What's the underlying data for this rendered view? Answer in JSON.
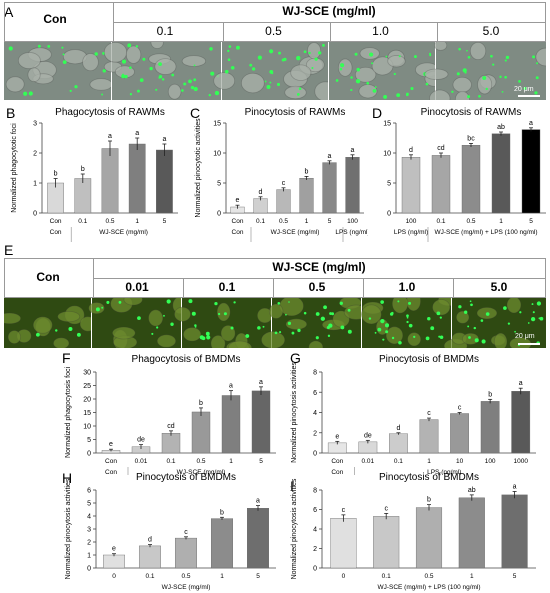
{
  "panel_letters": {
    "a": "A",
    "b": "B",
    "c": "C",
    "d": "D",
    "e": "E",
    "f": "F",
    "g": "G",
    "h": "H",
    "i": "I"
  },
  "panel_a": {
    "con_label": "Con",
    "treatment_header": "WJ-SCE (mg/ml)",
    "doses": [
      "0.1",
      "0.5",
      "1.0",
      "5.0"
    ],
    "scale_bar": "20 μm"
  },
  "panel_e": {
    "con_label": "Con",
    "treatment_header": "WJ-SCE (mg/ml)",
    "doses": [
      "0.01",
      "0.1",
      "0.5",
      "1.0",
      "5.0"
    ],
    "scale_bar": "20 μm"
  },
  "colors": {
    "micro_bg_a": "#7f8b83",
    "micro_bg_e": "#2f4a12",
    "fluor_green": "#33ff55"
  },
  "chart_data": [
    {
      "id": "B",
      "type": "bar",
      "title": "Phagocytosis of RAWMs",
      "ylabel": "Normalized phagocytotic foci",
      "categories": [
        "Con",
        "0.1",
        "0.5",
        "1",
        "5"
      ],
      "values": [
        1.0,
        1.15,
        2.15,
        2.3,
        2.1
      ],
      "errors": [
        0.15,
        0.15,
        0.25,
        0.2,
        0.2
      ],
      "letters": [
        "b",
        "b",
        "a",
        "a",
        "a"
      ],
      "ylim": [
        0,
        3
      ],
      "yticks": [
        0,
        1,
        2,
        3
      ],
      "xlabel_groups": [
        "Con",
        "WJ-SCE (mg/ml)"
      ],
      "colors": [
        "#d9d9d9",
        "#bfbfbf",
        "#a6a6a6",
        "#7f7f7f",
        "#595959"
      ]
    },
    {
      "id": "C",
      "type": "bar",
      "title": "Pinocytosis of RAWMs",
      "ylabel": "Normalized pinocytotic activities",
      "categories": [
        "Con",
        "0.1",
        "0.5",
        "1",
        "5",
        "100"
      ],
      "values": [
        1.0,
        2.4,
        3.9,
        5.8,
        8.4,
        9.3
      ],
      "errors": [
        0.3,
        0.3,
        0.3,
        0.3,
        0.3,
        0.4
      ],
      "letters": [
        "e",
        "d",
        "c",
        "b",
        "a",
        "a"
      ],
      "ylim": [
        0,
        15
      ],
      "yticks": [
        0,
        5,
        10,
        15
      ],
      "xlabel_groups": [
        "Con",
        "WJ-SCE (mg/ml)",
        "LPS (ng/ml)"
      ],
      "colors": [
        "#e6e6e6",
        "#d0d0d0",
        "#b8b8b8",
        "#a0a0a0",
        "#888888",
        "#707070"
      ]
    },
    {
      "id": "D",
      "type": "bar",
      "title": "Pinocytosis of RAWMs",
      "ylabel": "",
      "categories": [
        "100",
        "0.1",
        "0.5",
        "1",
        "5"
      ],
      "values": [
        9.3,
        9.6,
        11.3,
        13.2,
        13.9
      ],
      "errors": [
        0.4,
        0.4,
        0.3,
        0.3,
        0.3
      ],
      "letters": [
        "d",
        "cd",
        "bc",
        "ab",
        "a"
      ],
      "ylim": [
        0,
        15
      ],
      "yticks": [
        0,
        5,
        10,
        15
      ],
      "xlabel_groups": [
        "LPS (ng/ml)",
        "WJ-SCE (mg/ml) + LPS (100 ng/ml)"
      ],
      "colors": [
        "#bfbfbf",
        "#a6a6a6",
        "#8c8c8c",
        "#595959",
        "#000000"
      ]
    },
    {
      "id": "F",
      "type": "bar",
      "title": "Phagocytosis of BMDMs",
      "ylabel": "Normalized phagocytosis foci",
      "categories": [
        "Con",
        "0.01",
        "0.1",
        "0.5",
        "1",
        "5"
      ],
      "values": [
        1.0,
        2.3,
        7.3,
        15.2,
        21.3,
        23.0
      ],
      "errors": [
        0.4,
        0.8,
        0.9,
        1.5,
        1.8,
        1.5
      ],
      "letters": [
        "e",
        "de",
        "cd",
        "b",
        "a",
        "a"
      ],
      "ylim": [
        0,
        30
      ],
      "yticks": [
        0,
        5,
        10,
        15,
        20,
        25,
        30
      ],
      "xlabel_groups": [
        "Con",
        "WJ-SCE (mg/ml)"
      ],
      "colors": [
        "#e0e0e0",
        "#cccccc",
        "#b3b3b3",
        "#999999",
        "#7f7f7f",
        "#666666"
      ]
    },
    {
      "id": "G",
      "type": "bar",
      "title": "Pinocytosis of BMDMs",
      "ylabel": "Normalized pinocytosis activities",
      "categories": [
        "Con",
        "0.01",
        "0.1",
        "1",
        "10",
        "100",
        "1000"
      ],
      "values": [
        1.0,
        1.1,
        1.9,
        3.3,
        3.9,
        5.1,
        6.1
      ],
      "errors": [
        0.15,
        0.15,
        0.1,
        0.15,
        0.1,
        0.2,
        0.3
      ],
      "letters": [
        "e",
        "de",
        "d",
        "c",
        "c",
        "b",
        "a"
      ],
      "ylim": [
        0,
        8
      ],
      "yticks": [
        0,
        2,
        4,
        6,
        8
      ],
      "xlabel_groups": [
        "Con",
        "LPS (ng/ml)"
      ],
      "colors": [
        "#e6e6e6",
        "#d9d9d9",
        "#cccccc",
        "#b3b3b3",
        "#999999",
        "#7f7f7f",
        "#595959"
      ]
    },
    {
      "id": "H",
      "type": "bar",
      "title": "Pinocytosis of BMDMs",
      "ylabel": "Normalized pinocytosis activities",
      "categories": [
        "0",
        "0.1",
        "0.5",
        "1",
        "5"
      ],
      "values": [
        1.0,
        1.7,
        2.3,
        3.8,
        4.6
      ],
      "errors": [
        0.1,
        0.1,
        0.1,
        0.1,
        0.2
      ],
      "letters": [
        "e",
        "d",
        "c",
        "b",
        "a"
      ],
      "ylim": [
        0,
        6
      ],
      "yticks": [
        0,
        1,
        2,
        3,
        4,
        5,
        6
      ],
      "xlabel_groups": [
        "WJ-SCE (mg/ml)"
      ],
      "colors": [
        "#e0e0e0",
        "#c8c8c8",
        "#afafaf",
        "#8c8c8c",
        "#6e6e6e"
      ]
    },
    {
      "id": "I",
      "type": "bar",
      "title": "Pinocytosis of BMDMs",
      "ylabel": "Normalized pinocytosis activities",
      "categories": [
        "0",
        "0.1",
        "0.5",
        "1",
        "5"
      ],
      "values": [
        5.1,
        5.3,
        6.2,
        7.2,
        7.5
      ],
      "errors": [
        0.35,
        0.3,
        0.3,
        0.3,
        0.35
      ],
      "letters": [
        "c",
        "c",
        "b",
        "ab",
        "a"
      ],
      "ylim": [
        0,
        8
      ],
      "yticks": [
        0,
        2,
        4,
        6,
        8
      ],
      "xlabel_groups": [
        "WJ-SCE (mg/ml) + LPS (100 ng/ml)"
      ],
      "colors": [
        "#e0e0e0",
        "#c8c8c8",
        "#afafaf",
        "#8c8c8c",
        "#6e6e6e"
      ]
    }
  ]
}
